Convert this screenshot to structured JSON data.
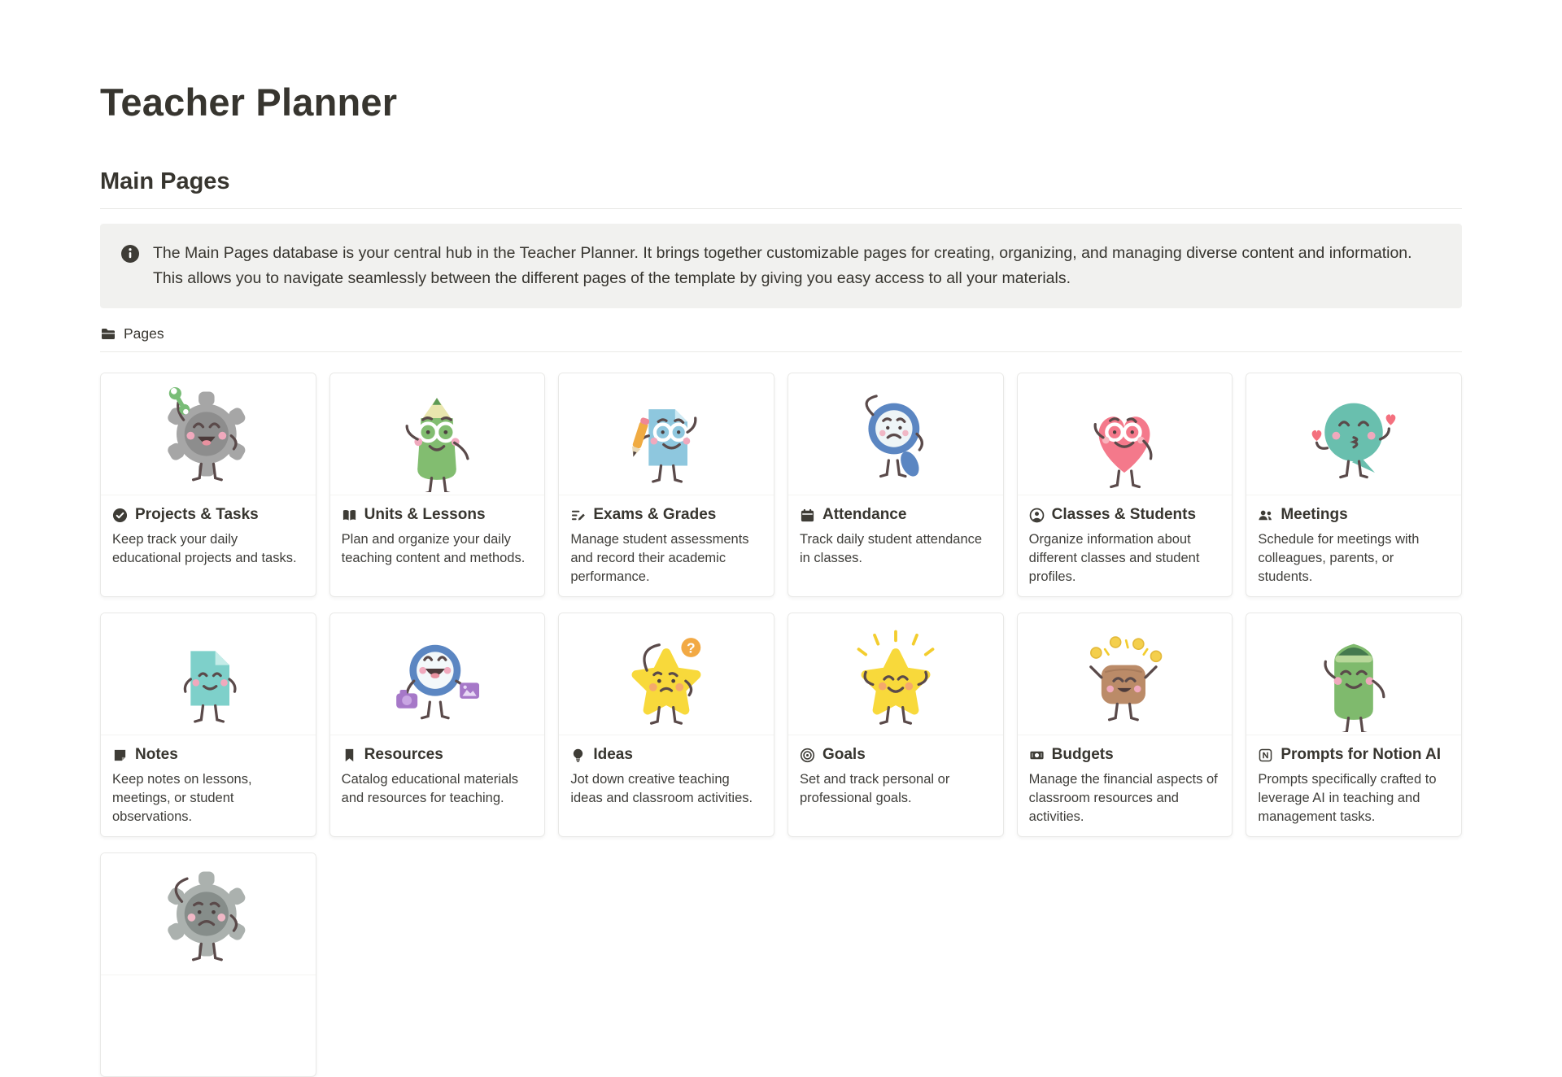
{
  "page": {
    "title": "Teacher Planner",
    "section_heading": "Main Pages"
  },
  "callout": {
    "icon": "info-icon",
    "text": "The Main Pages database is your central hub in the Teacher Planner. It brings  together customizable pages for creating, organizing, and managing diverse content and information. This allows you to navigate seamlessly between the different pages of the template by giving you easy access to all your materials."
  },
  "view_tabs": {
    "pages_icon": "folder-icon",
    "pages_label": "Pages"
  },
  "cards": [
    {
      "title": "Projects & Tasks",
      "icon": "check-circle-icon",
      "description": "Keep track your daily educational projects and tasks.",
      "illustration": "gear-character-happy"
    },
    {
      "title": "Units & Lessons",
      "icon": "open-book-icon",
      "description": "Plan and organize your daily teaching content and methods.",
      "illustration": "green-pencil-character"
    },
    {
      "title": "Exams & Grades",
      "icon": "edit-list-icon",
      "description": "Manage student assessments and record their academic performance.",
      "illustration": "blue-document-character"
    },
    {
      "title": "Attendance",
      "icon": "calendar-icon",
      "description": "Track daily student attendance in classes.",
      "illustration": "blue-magnifier-worried-character"
    },
    {
      "title": "Classes & Students",
      "icon": "person-circle-icon",
      "description": "Organize information about different classes and student profiles.",
      "illustration": "pink-heart-character"
    },
    {
      "title": "Meetings",
      "icon": "people-icon",
      "description": "Schedule for meetings with colleagues, parents, or students.",
      "illustration": "teal-bubble-kiss-character"
    },
    {
      "title": "Notes",
      "icon": "note-icon",
      "description": "Keep notes on lessons, meetings, or student observations.",
      "illustration": "teal-paper-character"
    },
    {
      "title": "Resources",
      "icon": "bookmark-icon",
      "description": "Catalog educational materials and resources for teaching.",
      "illustration": "blue-magnifier-camera-character"
    },
    {
      "title": "Ideas",
      "icon": "lightbulb-icon",
      "description": "Jot down creative teaching ideas and classroom activities.",
      "illustration": "yellow-star-question-character"
    },
    {
      "title": "Goals",
      "icon": "target-icon",
      "description": "Set and track personal or professional goals.",
      "illustration": "yellow-star-excited-character"
    },
    {
      "title": "Budgets",
      "icon": "banknote-icon",
      "description": "Manage the financial aspects of classroom resources and activities.",
      "illustration": "brown-wallet-character"
    },
    {
      "title": "Prompts for Notion AI",
      "icon": "notion-icon",
      "description": "Prompts specifically crafted to leverage AI in teaching and management tasks.",
      "illustration": "green-beanie-character"
    },
    {
      "title": "",
      "icon": "",
      "description": "",
      "illustration": "gear-character-sad"
    }
  ],
  "colors": {
    "text": "#37352f",
    "callout_bg": "#f1f1ef",
    "divider": "#e9e9e7",
    "card_border": "#e9e9e7"
  }
}
